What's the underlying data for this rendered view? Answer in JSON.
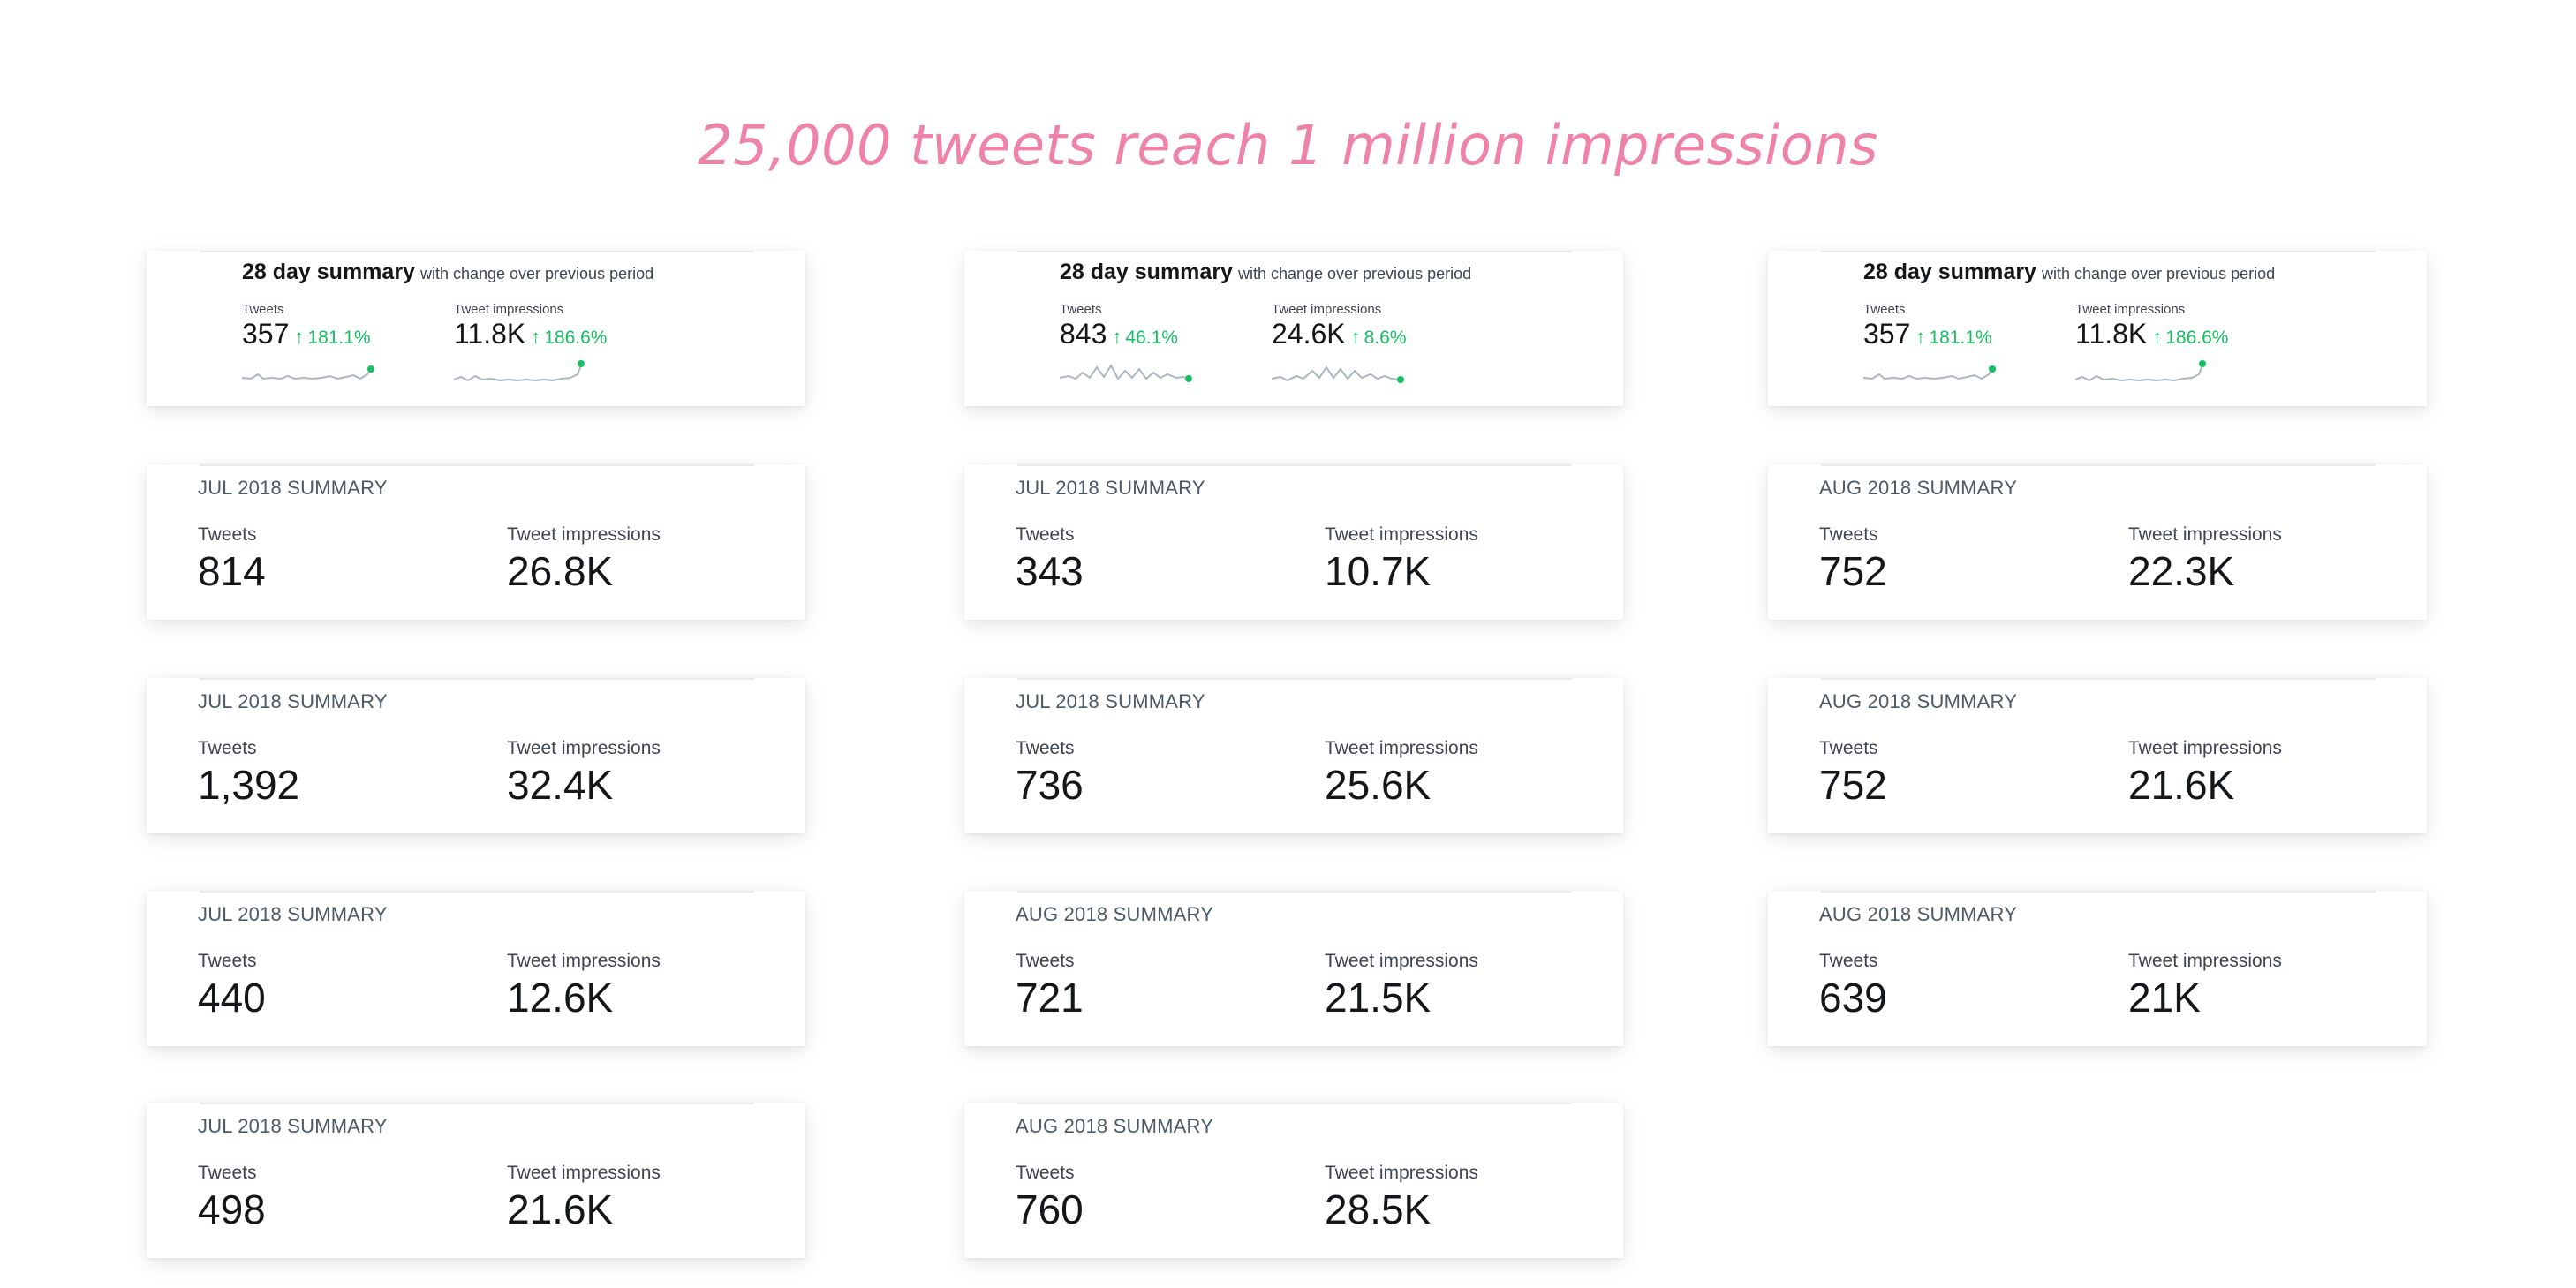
{
  "headline": {
    "text": "25,000 tweets reach 1 million impressions",
    "color": "#ee82a8"
  },
  "summary_cards": [
    {
      "title": "28 day summary",
      "subtitle": "with change over previous period",
      "tweets_label": "Tweets",
      "tweets_value": "357",
      "tweets_change": "181.1%",
      "impressions_label": "Tweet impressions",
      "impressions_value": "11.8K",
      "impressions_change": "186.6%",
      "arrow": "↑"
    },
    {
      "title": "28 day summary",
      "subtitle": "with change over previous period",
      "tweets_label": "Tweets",
      "tweets_value": "843",
      "tweets_change": "46.1%",
      "impressions_label": "Tweet impressions",
      "impressions_value": "24.6K",
      "impressions_change": "8.6%",
      "arrow": "↑"
    },
    {
      "title": "28 day summary",
      "subtitle": "with change over previous period",
      "tweets_label": "Tweets",
      "tweets_value": "357",
      "tweets_change": "181.1%",
      "impressions_label": "Tweet impressions",
      "impressions_value": "11.8K",
      "impressions_change": "186.6%",
      "arrow": "↑"
    }
  ],
  "columns": [
    {
      "cards": [
        {
          "title": "JUL 2018 SUMMARY",
          "tweets_label": "Tweets",
          "tweets": "814",
          "impressions_label": "Tweet impressions",
          "impressions": "26.8K"
        },
        {
          "title": "JUL 2018 SUMMARY",
          "tweets_label": "Tweets",
          "tweets": "1,392",
          "impressions_label": "Tweet impressions",
          "impressions": "32.4K"
        },
        {
          "title": "JUL 2018 SUMMARY",
          "tweets_label": "Tweets",
          "tweets": "440",
          "impressions_label": "Tweet impressions",
          "impressions": "12.6K"
        },
        {
          "title": "JUL 2018 SUMMARY",
          "tweets_label": "Tweets",
          "tweets": "498",
          "impressions_label": "Tweet impressions",
          "impressions": "21.6K"
        }
      ]
    },
    {
      "cards": [
        {
          "title": "JUL 2018 SUMMARY",
          "tweets_label": "Tweets",
          "tweets": "343",
          "impressions_label": "Tweet impressions",
          "impressions": "10.7K"
        },
        {
          "title": "JUL 2018 SUMMARY",
          "tweets_label": "Tweets",
          "tweets": "736",
          "impressions_label": "Tweet impressions",
          "impressions": "25.6K"
        },
        {
          "title": "AUG 2018 SUMMARY",
          "tweets_label": "Tweets",
          "tweets": "721",
          "impressions_label": "Tweet impressions",
          "impressions": "21.5K"
        },
        {
          "title": "AUG 2018 SUMMARY",
          "tweets_label": "Tweets",
          "tweets": "760",
          "impressions_label": "Tweet impressions",
          "impressions": "28.5K"
        }
      ]
    },
    {
      "cards": [
        {
          "title": "AUG 2018 SUMMARY",
          "tweets_label": "Tweets",
          "tweets": "752",
          "impressions_label": "Tweet impressions",
          "impressions": "22.3K"
        },
        {
          "title": "AUG 2018 SUMMARY",
          "tweets_label": "Tweets",
          "tweets": "752",
          "impressions_label": "Tweet impressions",
          "impressions": "21.6K"
        },
        {
          "title": "AUG 2018 SUMMARY",
          "tweets_label": "Tweets",
          "tweets": "639",
          "impressions_label": "Tweet impressions",
          "impressions": "21K"
        }
      ]
    }
  ],
  "colors": {
    "positive_change": "#17bf63",
    "sparkline": "#aab8c2",
    "sparkline_dot": "#17bf63"
  }
}
